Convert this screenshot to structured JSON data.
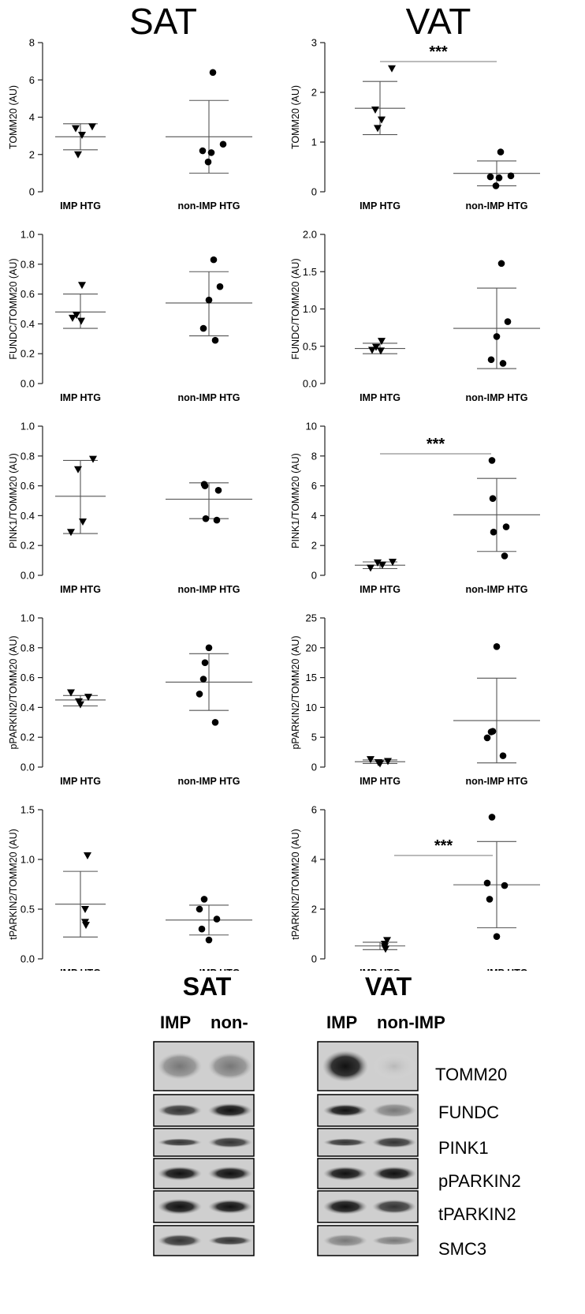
{
  "headers": {
    "sat": "SAT",
    "vat": "VAT"
  },
  "chart_data": [
    {
      "type": "scatter",
      "panel": "SAT",
      "title": "",
      "ylabel": "TOMM20 (AU)",
      "ylim": [
        0,
        8
      ],
      "yticks": [
        0,
        2,
        4,
        6,
        8
      ],
      "ytick_labels": [
        "0",
        "2",
        "4",
        "6",
        "8"
      ],
      "categories": [
        "IMP HTG",
        "non-IMP HTG"
      ],
      "series": [
        {
          "name": "IMP HTG",
          "marker": "triangle",
          "values": [
            3.5,
            3.4,
            3.05,
            2.0
          ],
          "mean": 2.95,
          "sd_low": 2.25,
          "sd_high": 3.65
        },
        {
          "name": "non-IMP HTG",
          "marker": "circle",
          "values": [
            6.4,
            2.55,
            2.2,
            2.1,
            1.6
          ],
          "mean": 2.95,
          "sd_low": 1.0,
          "sd_high": 4.9
        }
      ],
      "significance": null
    },
    {
      "type": "scatter",
      "panel": "VAT",
      "title": "",
      "ylabel": "TOMM20 (AU)",
      "ylim": [
        0,
        3
      ],
      "yticks": [
        0,
        1,
        2,
        3
      ],
      "ytick_labels": [
        "0",
        "1",
        "2",
        "3"
      ],
      "categories": [
        "IMP HTG",
        "non-IMP HTG"
      ],
      "series": [
        {
          "name": "IMP HTG",
          "marker": "triangle",
          "values": [
            2.48,
            1.65,
            1.45,
            1.28
          ],
          "mean": 1.68,
          "sd_low": 1.15,
          "sd_high": 2.22
        },
        {
          "name": "non-IMP HTG",
          "marker": "circle",
          "values": [
            0.8,
            0.32,
            0.3,
            0.28,
            0.12
          ],
          "mean": 0.37,
          "sd_low": 0.12,
          "sd_high": 0.62
        }
      ],
      "significance": "***"
    },
    {
      "type": "scatter",
      "panel": "SAT",
      "title": "",
      "ylabel": "FUNDC/TOMM20 (AU)",
      "ylim": [
        0,
        1
      ],
      "yticks": [
        0,
        0.2,
        0.4,
        0.6,
        0.8,
        1.0
      ],
      "ytick_labels": [
        "0.0",
        "0.2",
        "0.4",
        "0.6",
        "0.8",
        "1.0"
      ],
      "categories": [
        "IMP HTG",
        "non-IMP HTG"
      ],
      "series": [
        {
          "name": "IMP HTG",
          "marker": "triangle",
          "values": [
            0.66,
            0.46,
            0.44,
            0.42
          ],
          "mean": 0.48,
          "sd_low": 0.37,
          "sd_high": 0.6
        },
        {
          "name": "non-IMP HTG",
          "marker": "circle",
          "values": [
            0.83,
            0.65,
            0.56,
            0.37,
            0.29
          ],
          "mean": 0.54,
          "sd_low": 0.32,
          "sd_high": 0.75
        }
      ],
      "significance": null
    },
    {
      "type": "scatter",
      "panel": "VAT",
      "title": "",
      "ylabel": "FUNDC/TOMM20 (AU)",
      "ylim": [
        0,
        2
      ],
      "yticks": [
        0,
        0.5,
        1.0,
        1.5,
        2.0
      ],
      "ytick_labels": [
        "0.0",
        "0.5",
        "1.0",
        "1.5",
        "2.0"
      ],
      "categories": [
        "IMP HTG",
        "non-IMP HTG"
      ],
      "series": [
        {
          "name": "IMP HTG",
          "marker": "triangle",
          "values": [
            0.57,
            0.49,
            0.45,
            0.44
          ],
          "mean": 0.47,
          "sd_low": 0.4,
          "sd_high": 0.54
        },
        {
          "name": "non-IMP HTG",
          "marker": "circle",
          "values": [
            1.61,
            0.83,
            0.63,
            0.32,
            0.27
          ],
          "mean": 0.74,
          "sd_low": 0.2,
          "sd_high": 1.28
        }
      ],
      "significance": null
    },
    {
      "type": "scatter",
      "panel": "SAT",
      "title": "",
      "ylabel": "PINK1/TOMM20 (AU)",
      "ylim": [
        0,
        1
      ],
      "yticks": [
        0,
        0.2,
        0.4,
        0.6,
        0.8,
        1.0
      ],
      "ytick_labels": [
        "0.0",
        "0.2",
        "0.4",
        "0.6",
        "0.8",
        "1.0"
      ],
      "categories": [
        "IMP HTG",
        "non-IMP HTG"
      ],
      "series": [
        {
          "name": "IMP HTG",
          "marker": "triangle",
          "values": [
            0.78,
            0.71,
            0.36,
            0.29
          ],
          "mean": 0.53,
          "sd_low": 0.28,
          "sd_high": 0.77
        },
        {
          "name": "non-IMP HTG",
          "marker": "circle",
          "values": [
            0.61,
            0.6,
            0.57,
            0.38,
            0.37
          ],
          "mean": 0.51,
          "sd_low": 0.38,
          "sd_high": 0.62
        }
      ],
      "significance": null
    },
    {
      "type": "scatter",
      "panel": "VAT",
      "title": "",
      "ylabel": "PINK1/TOMM20 (AU)",
      "ylim": [
        0,
        10
      ],
      "yticks": [
        0,
        2,
        4,
        6,
        8,
        10
      ],
      "ytick_labels": [
        "0",
        "2",
        "4",
        "6",
        "8",
        "10"
      ],
      "categories": [
        "IMP HTG",
        "non-IMP HTG"
      ],
      "series": [
        {
          "name": "IMP HTG",
          "marker": "triangle",
          "values": [
            0.9,
            0.85,
            0.7,
            0.5
          ],
          "mean": 0.68,
          "sd_low": 0.45,
          "sd_high": 0.9
        },
        {
          "name": "non-IMP HTG",
          "marker": "circle",
          "values": [
            7.7,
            5.15,
            3.25,
            2.9,
            1.3
          ],
          "mean": 4.06,
          "sd_low": 1.6,
          "sd_high": 6.5
        }
      ],
      "significance": "***"
    },
    {
      "type": "scatter",
      "panel": "SAT",
      "title": "",
      "ylabel": "pPARKIN2/TOMM20 (AU)",
      "ylim": [
        0,
        1
      ],
      "yticks": [
        0,
        0.2,
        0.4,
        0.6,
        0.8,
        1.0
      ],
      "ytick_labels": [
        "0.0",
        "0.2",
        "0.4",
        "0.6",
        "0.8",
        "1.0"
      ],
      "categories": [
        "IMP HTG",
        "non-IMP HTG"
      ],
      "series": [
        {
          "name": "IMP HTG",
          "marker": "triangle",
          "values": [
            0.5,
            0.47,
            0.44,
            0.42
          ],
          "mean": 0.45,
          "sd_low": 0.41,
          "sd_high": 0.48
        },
        {
          "name": "non-IMP HTG",
          "marker": "circle",
          "values": [
            0.8,
            0.7,
            0.59,
            0.49,
            0.3
          ],
          "mean": 0.57,
          "sd_low": 0.38,
          "sd_high": 0.76
        }
      ],
      "significance": null
    },
    {
      "type": "scatter",
      "panel": "VAT",
      "title": "",
      "ylabel": "pPARKIN2/TOMM20 (AU)",
      "ylim": [
        0,
        25
      ],
      "yticks": [
        0,
        5,
        10,
        15,
        20,
        25
      ],
      "ytick_labels": [
        "0",
        "5",
        "10",
        "15",
        "20",
        "25"
      ],
      "categories": [
        "IMP HTG",
        "non-IMP HTG"
      ],
      "series": [
        {
          "name": "IMP HTG",
          "marker": "triangle",
          "values": [
            1.3,
            1.0,
            0.8,
            0.6
          ],
          "mean": 0.9,
          "sd_low": 0.6,
          "sd_high": 1.2
        },
        {
          "name": "non-IMP HTG",
          "marker": "circle",
          "values": [
            20.2,
            6.0,
            5.9,
            4.9,
            1.9
          ],
          "mean": 7.8,
          "sd_low": 0.7,
          "sd_high": 14.9
        }
      ],
      "significance": null
    },
    {
      "type": "scatter",
      "panel": "SAT",
      "title": "",
      "ylabel": "tPARKIN2/TOMM20 (AU)",
      "ylim": [
        0,
        1.5
      ],
      "yticks": [
        0,
        0.5,
        1.0,
        1.5
      ],
      "ytick_labels": [
        "0.0",
        "0.5",
        "1.0",
        "1.5"
      ],
      "categories": [
        "IMP HTG",
        "non-IMP HTG"
      ],
      "series": [
        {
          "name": "IMP HTG",
          "marker": "triangle",
          "values": [
            1.04,
            0.5,
            0.37,
            0.34
          ],
          "mean": 0.55,
          "sd_low": 0.22,
          "sd_high": 0.88
        },
        {
          "name": "non-IMP HTG",
          "marker": "circle",
          "values": [
            0.6,
            0.5,
            0.4,
            0.3,
            0.19
          ],
          "mean": 0.39,
          "sd_low": 0.24,
          "sd_high": 0.54
        }
      ],
      "significance": null
    },
    {
      "type": "scatter",
      "panel": "VAT",
      "title": "",
      "ylabel": "tPARKIN2/TOMM20 (AU)",
      "ylim": [
        0,
        6
      ],
      "yticks": [
        0,
        2,
        4,
        6
      ],
      "ytick_labels": [
        "0",
        "2",
        "4",
        "6"
      ],
      "categories": [
        "IMP HTG",
        "non-IMP HTG"
      ],
      "series": [
        {
          "name": "IMP HTG",
          "marker": "triangle",
          "values": [
            0.75,
            0.6,
            0.5,
            0.4
          ],
          "mean": 0.52,
          "sd_low": 0.37,
          "sd_high": 0.67
        },
        {
          "name": "non-IMP HTG",
          "marker": "circle",
          "values": [
            5.7,
            3.05,
            2.95,
            2.4,
            0.9
          ],
          "mean": 2.98,
          "sd_low": 1.25,
          "sd_high": 4.72
        }
      ],
      "significance": "***"
    }
  ],
  "blot": {
    "sat_title": "SAT",
    "vat_title": "VAT",
    "sat_lanes": [
      "IMP",
      "non-"
    ],
    "vat_lanes": [
      "IMP",
      "non-IMP"
    ],
    "proteins": [
      "TOMM20",
      "FUNDC",
      "PINK1",
      "pPARKIN2",
      "tPARKIN2",
      "SMC3"
    ]
  },
  "colors": {
    "ink": "#000000",
    "axis": "#222222",
    "errorbar": "#555555",
    "sig_line": "#777777"
  }
}
